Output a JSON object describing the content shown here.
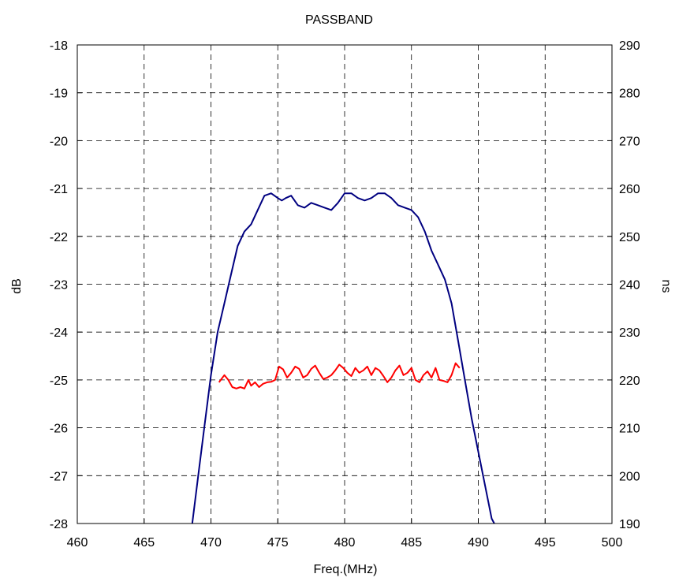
{
  "chart_data": {
    "type": "line",
    "title": "PASSBAND",
    "xlabel": "Freq.(MHz)",
    "ylabel": "dB",
    "y2label": "ns",
    "xlim": [
      460,
      500
    ],
    "ylim": [
      -28,
      -18
    ],
    "y2lim": [
      190,
      290
    ],
    "xticks": [
      460,
      465,
      470,
      475,
      480,
      485,
      490,
      495,
      500
    ],
    "yticks": [
      -18,
      -19,
      -20,
      -21,
      -22,
      -23,
      -24,
      -25,
      -26,
      -27,
      -28
    ],
    "y2ticks": [
      290,
      280,
      270,
      260,
      250,
      240,
      230,
      220,
      210,
      200,
      190
    ],
    "grid": true,
    "series": [
      {
        "axis": "left",
        "color": "#000080",
        "x": [
          468.6,
          469.0,
          469.5,
          470.0,
          470.5,
          471.0,
          471.5,
          472.0,
          472.5,
          473.0,
          473.5,
          474.0,
          474.5,
          475.0,
          475.3,
          475.6,
          476.0,
          476.5,
          477.0,
          477.5,
          478.0,
          478.5,
          479.0,
          479.5,
          480.0,
          480.5,
          481.0,
          481.5,
          482.0,
          482.5,
          483.0,
          483.5,
          484.0,
          484.5,
          485.0,
          485.5,
          486.0,
          486.5,
          487.0,
          487.5,
          488.0,
          488.5,
          489.0,
          489.5,
          490.0,
          490.5,
          491.0,
          491.2
        ],
        "values": [
          -28.0,
          -27.1,
          -26.0,
          -24.9,
          -24.0,
          -23.4,
          -22.8,
          -22.2,
          -21.9,
          -21.75,
          -21.45,
          -21.15,
          -21.1,
          -21.2,
          -21.25,
          -21.2,
          -21.15,
          -21.35,
          -21.4,
          -21.3,
          -21.35,
          -21.4,
          -21.45,
          -21.3,
          -21.1,
          -21.1,
          -21.2,
          -21.25,
          -21.2,
          -21.1,
          -21.1,
          -21.2,
          -21.35,
          -21.4,
          -21.45,
          -21.6,
          -21.9,
          -22.3,
          -22.6,
          -22.9,
          -23.4,
          -24.2,
          -25.0,
          -25.8,
          -26.5,
          -27.2,
          -27.9,
          -28.0
        ],
        "y_comment": "dB"
      },
      {
        "axis": "right",
        "color": "#ff0000",
        "x": [
          470.6,
          471.0,
          471.3,
          471.6,
          471.9,
          472.2,
          472.5,
          472.8,
          473.0,
          473.3,
          473.6,
          473.9,
          474.2,
          474.5,
          474.8,
          475.1,
          475.4,
          475.7,
          476.0,
          476.3,
          476.6,
          476.9,
          477.2,
          477.5,
          477.8,
          478.1,
          478.4,
          478.7,
          479.0,
          479.3,
          479.6,
          479.9,
          480.2,
          480.5,
          480.8,
          481.1,
          481.4,
          481.7,
          482.0,
          482.3,
          482.6,
          482.9,
          483.2,
          483.5,
          483.8,
          484.1,
          484.4,
          484.7,
          485.0,
          485.3,
          485.6,
          485.9,
          486.2,
          486.5,
          486.8,
          487.1,
          487.4,
          487.7,
          488.0,
          488.3,
          488.6
        ],
        "values": [
          219.5,
          221.0,
          220.0,
          218.5,
          218.2,
          218.5,
          218.2,
          220.0,
          218.8,
          219.5,
          218.5,
          219.2,
          219.5,
          219.6,
          220.0,
          222.8,
          222.2,
          220.5,
          221.5,
          222.8,
          222.3,
          220.5,
          221.0,
          222.3,
          223.0,
          221.5,
          220.2,
          220.5,
          221.0,
          222.0,
          223.2,
          222.5,
          221.5,
          220.8,
          222.5,
          221.5,
          222.0,
          222.8,
          221.0,
          222.5,
          222.0,
          220.8,
          219.5,
          220.5,
          222.0,
          223.0,
          221.0,
          221.5,
          222.5,
          220.0,
          219.5,
          221.0,
          221.8,
          220.5,
          222.5,
          220.0,
          219.8,
          219.5,
          221.0,
          223.5,
          222.5
        ],
        "y_comment": "ns"
      }
    ]
  }
}
